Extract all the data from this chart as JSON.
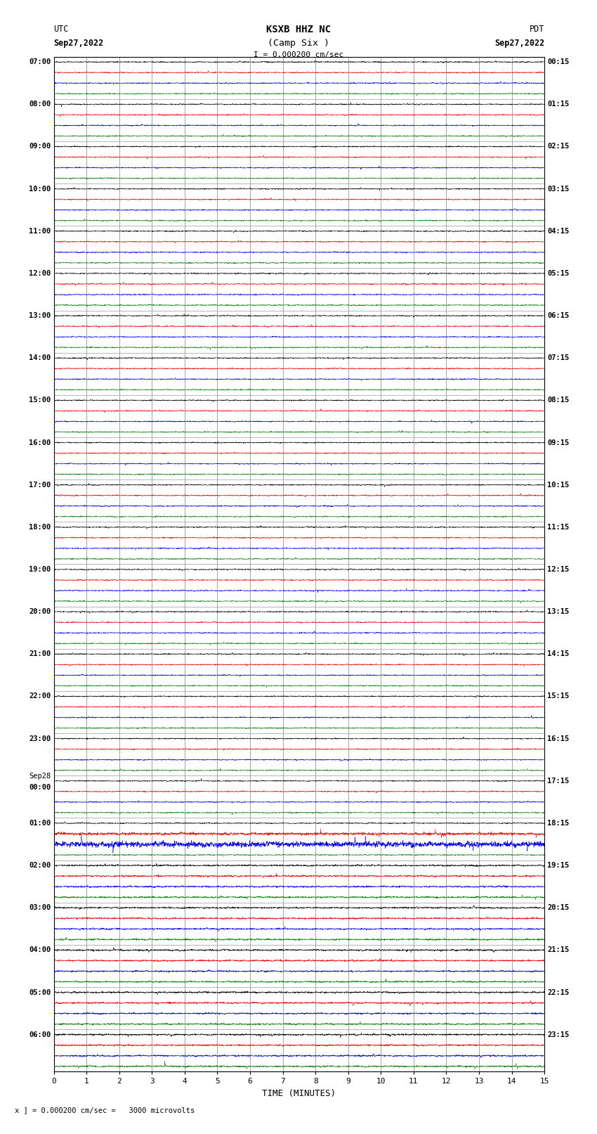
{
  "title_line1": "KSXB HHZ NC",
  "title_line2": "(Camp Six )",
  "scale_label": "I = 0.000200 cm/sec",
  "utc_label": "UTC",
  "pdt_label": "PDT",
  "date_left": "Sep27,2022",
  "date_right": "Sep27,2022",
  "footer_label": "x ] = 0.000200 cm/sec =   3000 microvolts",
  "xlabel": "TIME (MINUTES)",
  "bg_color": "#ffffff",
  "trace_colors": [
    "black",
    "red",
    "blue",
    "green"
  ],
  "left_times_utc": [
    "07:00",
    "08:00",
    "09:00",
    "10:00",
    "11:00",
    "12:00",
    "13:00",
    "14:00",
    "15:00",
    "16:00",
    "17:00",
    "18:00",
    "19:00",
    "20:00",
    "21:00",
    "22:00",
    "23:00",
    "Sep28",
    "01:00",
    "02:00",
    "03:00",
    "04:00",
    "05:00",
    "06:00"
  ],
  "left_times_utc_extra": [
    "",
    "",
    "",
    "",
    "",
    "",
    "",
    "",
    "",
    "",
    "",
    "",
    "",
    "",
    "",
    "",
    "",
    "00:00",
    "",
    "",
    "",
    "",
    "",
    ""
  ],
  "right_times_pdt": [
    "00:15",
    "01:15",
    "02:15",
    "03:15",
    "04:15",
    "05:15",
    "06:15",
    "07:15",
    "08:15",
    "09:15",
    "10:15",
    "11:15",
    "12:15",
    "13:15",
    "14:15",
    "15:15",
    "16:15",
    "17:15",
    "18:15",
    "19:15",
    "20:15",
    "21:15",
    "22:15",
    "23:15"
  ],
  "n_rows": 24,
  "traces_per_row": 4,
  "minutes": 15,
  "samples_per_minute": 200,
  "noise_seed": 12345,
  "amp_base": 0.28,
  "amp_scale": 0.08,
  "special_row_idx": 18,
  "special_blue_scale": 5.0,
  "special_red_scale": 2.5
}
